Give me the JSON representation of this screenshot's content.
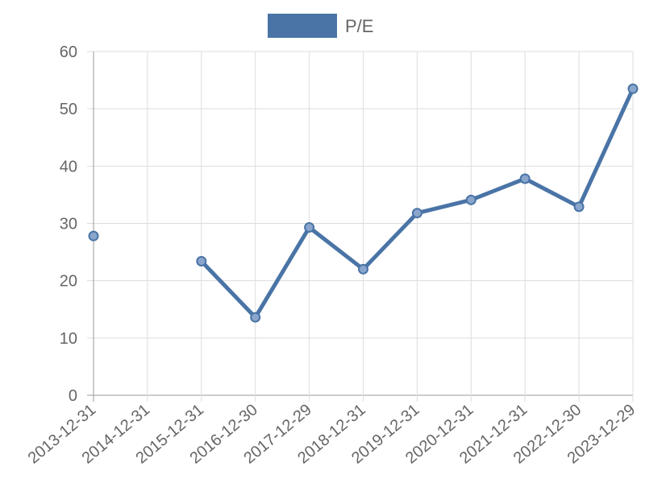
{
  "chart_data": {
    "type": "line",
    "categories": [
      "2013-12-31",
      "2014-12-31",
      "2015-12-31",
      "2016-12-30",
      "2017-12-29",
      "2018-12-31",
      "2019-12-31",
      "2020-12-31",
      "2021-12-31",
      "2022-12-30",
      "2023-12-29"
    ],
    "series": [
      {
        "name": "P/E",
        "color": "#4a74a6",
        "values": [
          27.8,
          null,
          23.4,
          13.6,
          29.3,
          22.0,
          31.8,
          34.1,
          37.8,
          32.9,
          53.5
        ]
      }
    ],
    "ylim": [
      0,
      60
    ],
    "yticks": [
      0,
      10,
      20,
      30,
      40,
      50,
      60
    ],
    "legend_position": "top-center",
    "grid": true,
    "colors": {
      "grid": "#dddddd",
      "axis": "#999999",
      "tick_text": "#666666",
      "point_fill": "#8aa6cc"
    }
  }
}
